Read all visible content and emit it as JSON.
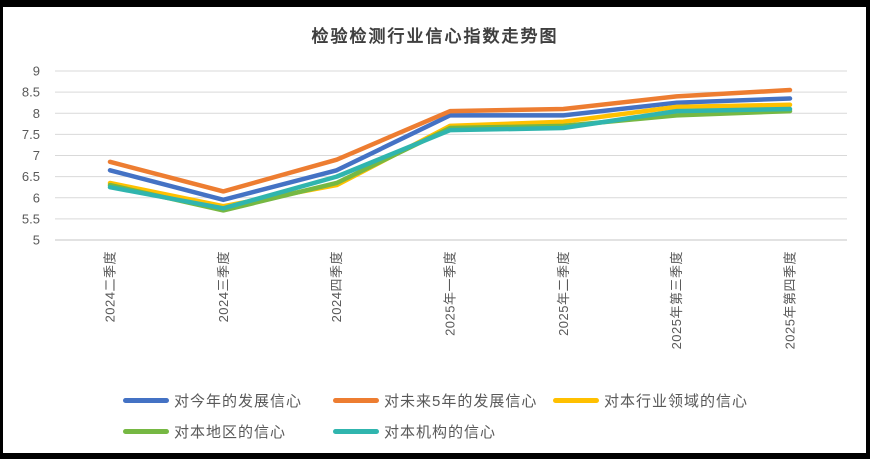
{
  "chart_data": {
    "type": "line",
    "title": "检验检测行业信心指数走势图",
    "xlabel": "",
    "ylabel": "",
    "categories": [
      "2024二季度",
      "2024三季度",
      "2024四季度",
      "2025年一季度",
      "2025年二季度",
      "2025年第三季度",
      "2025年第四季度"
    ],
    "series": [
      {
        "name": "对今年的发展信心",
        "color": "#4472C4",
        "values": [
          6.65,
          5.95,
          6.65,
          7.95,
          7.95,
          8.25,
          8.35
        ]
      },
      {
        "name": "对未来5年的发展信心",
        "color": "#ED7D31",
        "values": [
          6.85,
          6.15,
          6.9,
          8.05,
          8.1,
          8.4,
          8.55
        ]
      },
      {
        "name": "对本行业领域的信心",
        "color": "#FFC000",
        "values": [
          6.35,
          5.8,
          6.3,
          7.7,
          7.8,
          8.15,
          8.2
        ]
      },
      {
        "name": "对本地区的信心",
        "color": "#76B843",
        "values": [
          6.3,
          5.7,
          6.35,
          7.65,
          7.7,
          7.95,
          8.05
        ]
      },
      {
        "name": "对本机构的信心",
        "color": "#30B5AE",
        "values": [
          6.25,
          5.75,
          6.5,
          7.6,
          7.65,
          8.05,
          8.1
        ]
      }
    ],
    "ylim": [
      5,
      9
    ],
    "ytick_step": 0.5,
    "yticks": [
      "9",
      "8.5",
      "8",
      "7.5",
      "7",
      "6.5",
      "6",
      "5.5",
      "5"
    ],
    "grid": true,
    "legend_position": "bottom",
    "gridline_color": "#D9D9D9",
    "axis_line_color": "#C6C6C6",
    "axis_label_color": "#595959",
    "title_color": "#3F3F3F",
    "legend_text_color": "#595959",
    "frame_color": "#000000"
  }
}
